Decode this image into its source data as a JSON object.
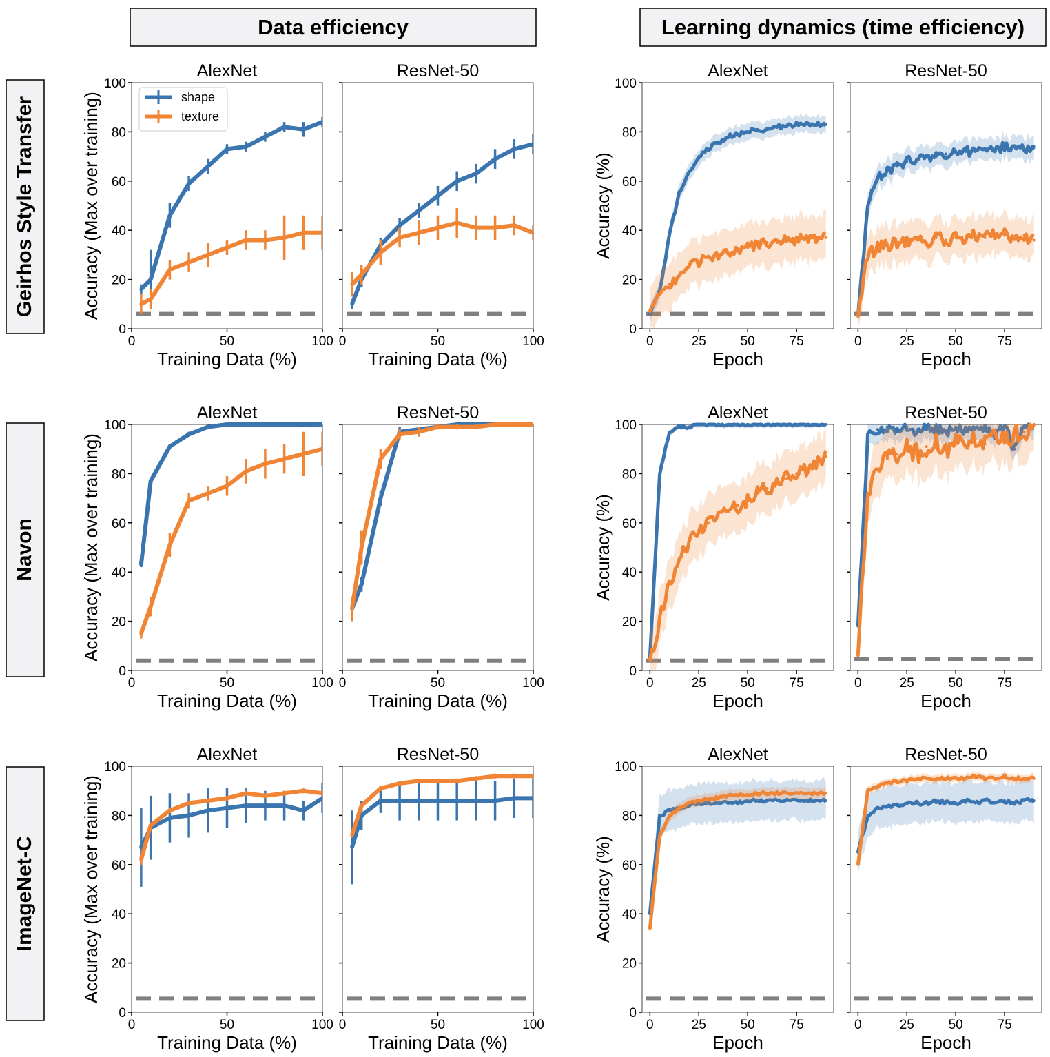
{
  "section_titles": {
    "data_efficiency": "Data efficiency",
    "learning_dynamics": "Learning dynamics (time efficiency)"
  },
  "row_labels": [
    "Geirhos Style Transfer",
    "Navon",
    "ImageNet-C"
  ],
  "legend": {
    "shape": "shape",
    "texture": "texture"
  },
  "colors": {
    "shape": "#3a75b0",
    "texture": "#f08536",
    "chance": "#808080"
  },
  "axis_labels": {
    "data_x": "Training Data (%)",
    "data_y": "Accuracy (Max over training)",
    "epoch_x": "Epoch",
    "epoch_y": "Accuracy (%)"
  },
  "chart_data": [
    {
      "type": "line",
      "panel": "data",
      "row": 0,
      "col": 0,
      "dataset": "Geirhos Style Transfer",
      "title": "AlexNet",
      "xlabel": "Training Data (%)",
      "ylabel": "Accuracy (Max over training)",
      "xlim": [
        0,
        100
      ],
      "ylim": [
        0,
        100
      ],
      "xticks": [
        0,
        50,
        100
      ],
      "yticks": [
        0,
        20,
        40,
        60,
        80,
        100
      ],
      "chance": 6,
      "x": [
        5,
        10,
        20,
        30,
        40,
        50,
        60,
        70,
        80,
        90,
        100
      ],
      "series": [
        {
          "name": "shape",
          "values": [
            16,
            20,
            46,
            59,
            66,
            73,
            74,
            78,
            82,
            81,
            84
          ],
          "err": [
            2,
            12,
            5,
            3,
            3,
            2,
            2,
            2,
            2,
            3,
            2
          ]
        },
        {
          "name": "texture",
          "values": [
            10,
            12,
            24,
            27,
            30,
            33,
            36,
            36,
            37,
            39,
            39
          ],
          "err": [
            4,
            4,
            4,
            4,
            5,
            3,
            4,
            4,
            9,
            7,
            7
          ]
        }
      ]
    },
    {
      "type": "line",
      "panel": "data",
      "row": 0,
      "col": 1,
      "dataset": "Geirhos Style Transfer",
      "title": "ResNet-50",
      "xlabel": "Training Data (%)",
      "ylabel": "",
      "xlim": [
        0,
        100
      ],
      "ylim": [
        0,
        100
      ],
      "xticks": [
        0,
        50,
        100
      ],
      "yticks": [
        0,
        20,
        40,
        60,
        80,
        100
      ],
      "chance": 6,
      "x": [
        5,
        10,
        20,
        30,
        40,
        50,
        60,
        70,
        80,
        90,
        100
      ],
      "series": [
        {
          "name": "shape",
          "values": [
            10,
            20,
            34,
            42,
            48,
            54,
            60,
            63,
            69,
            73,
            75
          ],
          "err": [
            2,
            3,
            3,
            3,
            3,
            4,
            4,
            4,
            4,
            4,
            4
          ]
        },
        {
          "name": "texture",
          "values": [
            18,
            22,
            31,
            37,
            39,
            41,
            43,
            41,
            41,
            42,
            39
          ],
          "err": [
            5,
            4,
            5,
            4,
            5,
            5,
            6,
            5,
            5,
            4,
            3
          ]
        }
      ]
    },
    {
      "type": "line",
      "panel": "data",
      "row": 1,
      "col": 0,
      "dataset": "Navon",
      "title": "AlexNet",
      "xlabel": "Training Data (%)",
      "ylabel": "Accuracy (Max over training)",
      "xlim": [
        0,
        100
      ],
      "ylim": [
        0,
        100
      ],
      "xticks": [
        0,
        50,
        100
      ],
      "yticks": [
        0,
        20,
        40,
        60,
        80,
        100
      ],
      "chance": 4,
      "x": [
        5,
        10,
        20,
        30,
        40,
        50,
        60,
        70,
        80,
        90,
        100
      ],
      "series": [
        {
          "name": "shape",
          "values": [
            43,
            77,
            91,
            96,
            99,
            100,
            100,
            100,
            100,
            100,
            100
          ],
          "err": [
            1,
            1,
            1,
            1,
            0,
            0,
            0,
            0,
            0,
            0,
            0
          ]
        },
        {
          "name": "texture",
          "values": [
            15,
            26,
            51,
            69,
            72,
            75,
            81,
            84,
            86,
            88,
            90
          ],
          "err": [
            2,
            4,
            5,
            3,
            3,
            4,
            5,
            6,
            6,
            9,
            7
          ]
        }
      ]
    },
    {
      "type": "line",
      "panel": "data",
      "row": 1,
      "col": 1,
      "dataset": "Navon",
      "title": "ResNet-50",
      "xlabel": "Training Data (%)",
      "ylabel": "",
      "xlim": [
        0,
        100
      ],
      "ylim": [
        0,
        100
      ],
      "xticks": [
        0,
        50,
        100
      ],
      "yticks": [
        0,
        20,
        40,
        60,
        80,
        100
      ],
      "chance": 4,
      "x": [
        5,
        10,
        20,
        30,
        40,
        50,
        60,
        70,
        80,
        90,
        100
      ],
      "series": [
        {
          "name": "shape",
          "values": [
            25,
            35,
            70,
            97,
            98,
            99,
            100,
            100,
            100,
            100,
            100
          ],
          "err": [
            4,
            3,
            3,
            2,
            1,
            1,
            0,
            0,
            0,
            0,
            0
          ]
        },
        {
          "name": "texture",
          "values": [
            25,
            50,
            86,
            96,
            97,
            99,
            99,
            99,
            100,
            100,
            100
          ],
          "err": [
            5,
            7,
            4,
            2,
            2,
            1,
            1,
            1,
            1,
            1,
            1
          ]
        }
      ]
    },
    {
      "type": "line",
      "panel": "data",
      "row": 2,
      "col": 0,
      "dataset": "ImageNet-C",
      "title": "AlexNet",
      "xlabel": "Training Data (%)",
      "ylabel": "Accuracy (Max over training)",
      "xlim": [
        0,
        100
      ],
      "ylim": [
        0,
        100
      ],
      "xticks": [
        0,
        50,
        100
      ],
      "yticks": [
        0,
        20,
        40,
        60,
        80,
        100
      ],
      "chance": 5.5,
      "x": [
        5,
        10,
        20,
        30,
        40,
        50,
        60,
        70,
        80,
        90,
        100
      ],
      "series": [
        {
          "name": "shape",
          "values": [
            67,
            75,
            79,
            80,
            82,
            83,
            84,
            84,
            84,
            82,
            87
          ],
          "err": [
            16,
            13,
            10,
            9,
            9,
            8,
            7,
            6,
            6,
            4,
            6
          ]
        },
        {
          "name": "texture",
          "values": [
            62,
            76,
            82,
            85,
            86,
            87,
            89,
            88,
            89,
            90,
            89
          ],
          "err": [
            2,
            1,
            1,
            1,
            1,
            1,
            1,
            1,
            1,
            1,
            1
          ]
        }
      ]
    },
    {
      "type": "line",
      "panel": "data",
      "row": 2,
      "col": 1,
      "dataset": "ImageNet-C",
      "title": "ResNet-50",
      "xlabel": "Training Data (%)",
      "ylabel": "",
      "xlim": [
        0,
        100
      ],
      "ylim": [
        0,
        100
      ],
      "xticks": [
        0,
        50,
        100
      ],
      "yticks": [
        0,
        20,
        40,
        60,
        80,
        100
      ],
      "chance": 5.5,
      "x": [
        5,
        10,
        20,
        30,
        40,
        50,
        60,
        70,
        80,
        90,
        100
      ],
      "series": [
        {
          "name": "shape",
          "values": [
            67,
            80,
            86,
            86,
            86,
            86,
            86,
            86,
            86,
            87,
            87
          ],
          "err": [
            15,
            6,
            5,
            8,
            8,
            8,
            8,
            8,
            8,
            8,
            8
          ]
        },
        {
          "name": "texture",
          "values": [
            72,
            84,
            91,
            93,
            94,
            94,
            94,
            95,
            96,
            96,
            96
          ],
          "err": [
            1,
            1,
            1,
            1,
            1,
            1,
            1,
            1,
            1,
            1,
            1
          ]
        }
      ]
    },
    {
      "type": "line",
      "panel": "epoch",
      "row": 0,
      "col": 0,
      "dataset": "Geirhos Style Transfer",
      "title": "AlexNet",
      "xlabel": "Epoch",
      "ylabel": "Accuracy (%)",
      "xlim": [
        -4,
        94
      ],
      "ylim": [
        0,
        100
      ],
      "xticks": [
        0,
        25,
        50,
        75
      ],
      "yticks": [
        0,
        20,
        40,
        60,
        80,
        100
      ],
      "chance": 6,
      "x": [
        0,
        5,
        10,
        15,
        20,
        25,
        30,
        35,
        40,
        45,
        50,
        55,
        60,
        65,
        70,
        75,
        80,
        85,
        90
      ],
      "series": [
        {
          "name": "shape",
          "values": [
            6,
            15,
            38,
            55,
            64,
            70,
            73,
            76,
            78,
            79,
            80,
            81,
            81,
            82,
            82,
            83,
            83,
            83,
            83
          ],
          "band": 3,
          "jitter": 1
        },
        {
          "name": "texture",
          "values": [
            7,
            14,
            18,
            22,
            25,
            27,
            29,
            30,
            31,
            32,
            33,
            34,
            35,
            35,
            36,
            36,
            37,
            37,
            37
          ],
          "band": 8,
          "jitter": 2
        }
      ]
    },
    {
      "type": "line",
      "panel": "epoch",
      "row": 0,
      "col": 1,
      "dataset": "Geirhos Style Transfer",
      "title": "ResNet-50",
      "xlabel": "Epoch",
      "ylabel": "",
      "xlim": [
        -4,
        94
      ],
      "ylim": [
        0,
        100
      ],
      "xticks": [
        0,
        25,
        50,
        75
      ],
      "yticks": [
        0,
        20,
        40,
        60,
        80,
        100
      ],
      "chance": 6,
      "x": [
        0,
        5,
        10,
        15,
        20,
        25,
        30,
        35,
        40,
        45,
        50,
        55,
        60,
        65,
        70,
        75,
        80,
        85,
        90
      ],
      "series": [
        {
          "name": "shape",
          "values": [
            5,
            50,
            61,
            64,
            66,
            68,
            69,
            70,
            70,
            71,
            72,
            72,
            72,
            73,
            72,
            74,
            74,
            73,
            74
          ],
          "band": 4,
          "jitter": 2
        },
        {
          "name": "texture",
          "values": [
            5,
            30,
            33,
            34,
            35,
            36,
            36,
            35,
            37,
            36,
            37,
            36,
            38,
            37,
            38,
            38,
            37,
            38,
            36
          ],
          "band": 7,
          "jitter": 2.5
        }
      ]
    },
    {
      "type": "line",
      "panel": "epoch",
      "row": 1,
      "col": 0,
      "dataset": "Navon",
      "title": "AlexNet",
      "xlabel": "Epoch",
      "ylabel": "Accuracy (%)",
      "xlim": [
        -4,
        94
      ],
      "ylim": [
        0,
        100
      ],
      "xticks": [
        0,
        25,
        50,
        75
      ],
      "yticks": [
        0,
        20,
        40,
        60,
        80,
        100
      ],
      "chance": 4,
      "x": [
        0,
        5,
        10,
        15,
        20,
        25,
        30,
        35,
        40,
        45,
        50,
        55,
        60,
        65,
        70,
        75,
        80,
        85,
        90
      ],
      "series": [
        {
          "name": "shape",
          "values": [
            5,
            80,
            97,
            99,
            99,
            100,
            100,
            100,
            100,
            100,
            100,
            100,
            100,
            100,
            100,
            100,
            100,
            100,
            100
          ],
          "band": 1,
          "jitter": 0.5
        },
        {
          "name": "texture",
          "values": [
            4,
            20,
            35,
            45,
            52,
            57,
            60,
            63,
            65,
            67,
            69,
            72,
            74,
            76,
            78,
            80,
            82,
            84,
            87
          ],
          "band": 9,
          "jitter": 3
        }
      ]
    },
    {
      "type": "line",
      "panel": "epoch",
      "row": 1,
      "col": 1,
      "dataset": "Navon",
      "title": "ResNet-50",
      "xlabel": "Epoch",
      "ylabel": "",
      "xlim": [
        -4,
        94
      ],
      "ylim": [
        0,
        100
      ],
      "xticks": [
        0,
        25,
        50,
        75
      ],
      "yticks": [
        0,
        20,
        40,
        60,
        80,
        100
      ],
      "chance": 4.5,
      "x": [
        0,
        5,
        10,
        15,
        20,
        25,
        30,
        35,
        40,
        45,
        50,
        55,
        60,
        65,
        70,
        75,
        80,
        85,
        90
      ],
      "series": [
        {
          "name": "shape",
          "values": [
            18,
            95,
            98,
            99,
            97,
            99,
            96,
            99,
            98,
            97,
            99,
            97,
            98,
            99,
            96,
            99,
            90,
            99,
            100
          ],
          "band": 4,
          "jitter": 2
        },
        {
          "name": "texture",
          "values": [
            6,
            72,
            82,
            86,
            88,
            90,
            88,
            91,
            92,
            90,
            93,
            91,
            94,
            92,
            95,
            93,
            96,
            97,
            100
          ],
          "band": 9,
          "jitter": 4
        }
      ]
    },
    {
      "type": "line",
      "panel": "epoch",
      "row": 2,
      "col": 0,
      "dataset": "ImageNet-C",
      "title": "AlexNet",
      "xlabel": "Epoch",
      "ylabel": "Accuracy (%)",
      "xlim": [
        -4,
        94
      ],
      "ylim": [
        0,
        100
      ],
      "xticks": [
        0,
        25,
        50,
        75
      ],
      "yticks": [
        0,
        20,
        40,
        60,
        80,
        100
      ],
      "chance": 5.5,
      "x": [
        0,
        5,
        10,
        15,
        20,
        25,
        30,
        35,
        40,
        45,
        50,
        55,
        60,
        65,
        70,
        75,
        80,
        85,
        90
      ],
      "series": [
        {
          "name": "shape",
          "values": [
            40,
            80,
            82,
            83,
            84,
            85,
            85,
            85,
            85,
            85,
            86,
            86,
            86,
            86,
            86,
            86,
            86,
            86,
            86
          ],
          "band": 7,
          "jitter": 0.6
        },
        {
          "name": "texture",
          "values": [
            34,
            72,
            80,
            83,
            85,
            86,
            87,
            87,
            88,
            88,
            88,
            89,
            89,
            89,
            89,
            89,
            89,
            89,
            89
          ],
          "band": 2,
          "jitter": 0.6
        }
      ]
    },
    {
      "type": "line",
      "panel": "epoch",
      "row": 2,
      "col": 1,
      "dataset": "ImageNet-C",
      "title": "ResNet-50",
      "xlabel": "Epoch",
      "ylabel": "",
      "xlim": [
        -4,
        94
      ],
      "ylim": [
        0,
        100
      ],
      "xticks": [
        0,
        25,
        50,
        75
      ],
      "yticks": [
        0,
        20,
        40,
        60,
        80,
        100
      ],
      "chance": 5.5,
      "x": [
        0,
        5,
        10,
        15,
        20,
        25,
        30,
        35,
        40,
        45,
        50,
        55,
        60,
        65,
        70,
        75,
        80,
        85,
        90
      ],
      "series": [
        {
          "name": "shape",
          "values": [
            65,
            80,
            83,
            84,
            84,
            85,
            85,
            85,
            86,
            85,
            85,
            86,
            85,
            86,
            85,
            86,
            85,
            86,
            86
          ],
          "band": 7,
          "jitter": 0.8
        },
        {
          "name": "texture",
          "values": [
            60,
            90,
            92,
            93,
            94,
            94,
            95,
            95,
            95,
            95,
            95,
            95,
            96,
            95,
            95,
            96,
            95,
            95,
            95
          ],
          "band": 1.5,
          "jitter": 0.6
        }
      ]
    }
  ]
}
